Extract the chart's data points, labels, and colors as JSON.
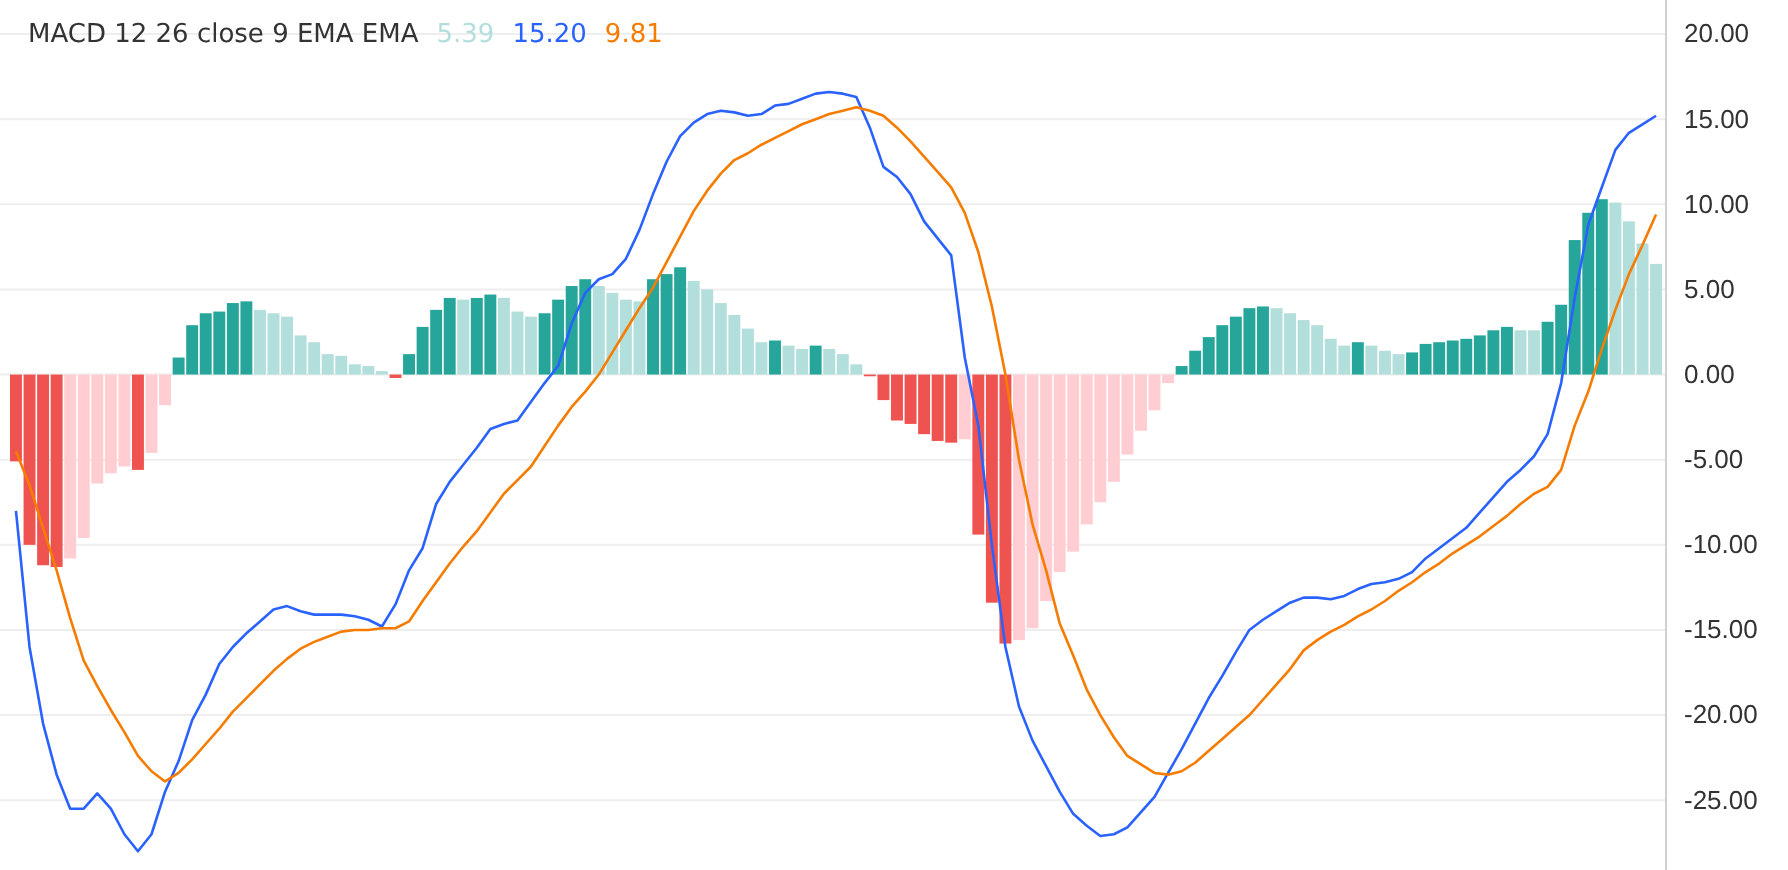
{
  "chart_data": {
    "type": "bar",
    "title": "MACD 12 26 close 9 EMA EMA",
    "categories": [
      null,
      null,
      null,
      null,
      null,
      null,
      null,
      null,
      null,
      null,
      null,
      null,
      null,
      null,
      null,
      null,
      null,
      null,
      null,
      null,
      null,
      null,
      null,
      null,
      null,
      null,
      null,
      null,
      null,
      null,
      null,
      null,
      null,
      null,
      null,
      null,
      null,
      null,
      null,
      null,
      null,
      null,
      null,
      null,
      null,
      null,
      null,
      null,
      null,
      null,
      null,
      null,
      null,
      null,
      null,
      null,
      null,
      null,
      null,
      null,
      null,
      null,
      null,
      null,
      null,
      null,
      null,
      null,
      null,
      null,
      null,
      null,
      null,
      null,
      null,
      null,
      null,
      null,
      null,
      null,
      null,
      null,
      null,
      null,
      null,
      null,
      null,
      null,
      null,
      null,
      null,
      null,
      null,
      null,
      null,
      null,
      null,
      null,
      null,
      null,
      null,
      null,
      null,
      null,
      null,
      null,
      null,
      null,
      null,
      null,
      null,
      null,
      null,
      null,
      null,
      null,
      null,
      null,
      null,
      null,
      null,
      null
    ],
    "series": [
      {
        "name": "5.39",
        "color": "#b2dfdb",
        "values": [
          -5.1,
          -10.0,
          -11.2,
          -11.3,
          -10.8,
          -9.6,
          -6.4,
          -5.8,
          -5.4,
          -5.6,
          -4.6,
          -1.8,
          1.0,
          2.9,
          3.6,
          3.7,
          4.2,
          4.3,
          3.8,
          3.6,
          3.4,
          2.3,
          1.9,
          1.2,
          1.1,
          0.6,
          0.5,
          0.2,
          -0.2,
          1.2,
          2.8,
          3.8,
          4.5,
          4.4,
          4.5,
          4.7,
          4.5,
          3.7,
          3.4,
          3.6,
          4.4,
          5.2,
          5.6,
          5.2,
          4.8,
          4.4,
          4.3,
          5.6,
          5.9,
          6.3,
          5.5,
          5.0,
          4.2,
          3.5,
          2.7,
          1.9,
          2.0,
          1.7,
          1.5,
          1.7,
          1.5,
          1.2,
          0.6,
          -0.1,
          -1.5,
          -2.7,
          -2.9,
          -3.5,
          -3.9,
          -4.0,
          -3.8,
          -9.4,
          -13.4,
          -15.8,
          -15.6,
          -14.9,
          -13.3,
          -11.6,
          -10.4,
          -8.8,
          -7.5,
          -6.3,
          -4.7,
          -3.3,
          -2.1,
          -0.5,
          0.5,
          1.4,
          2.2,
          2.9,
          3.4,
          3.9,
          4.0,
          3.9,
          3.6,
          3.2,
          2.9,
          2.1,
          1.7,
          1.9,
          1.7,
          1.4,
          1.2,
          1.3,
          1.8,
          1.9,
          2.0,
          2.1,
          2.3,
          2.6,
          2.8,
          2.6,
          2.6,
          3.1,
          4.1,
          7.9,
          9.5,
          10.3,
          10.1,
          9.0,
          7.7,
          6.5
        ],
        "colors": [
          "#ef5350",
          "#ef5350",
          "#ef5350",
          "#ef5350",
          "#ffcdd2",
          "#ffcdd2",
          "#ffcdd2",
          "#ffcdd2",
          "#ffcdd2",
          "#ef5350",
          "#ffcdd2",
          "#ffcdd2",
          "#26a69a",
          "#26a69a",
          "#26a69a",
          "#26a69a",
          "#26a69a",
          "#26a69a",
          "#b2dfdb",
          "#b2dfdb",
          "#b2dfdb",
          "#b2dfdb",
          "#b2dfdb",
          "#b2dfdb",
          "#b2dfdb",
          "#b2dfdb",
          "#b2dfdb",
          "#b2dfdb",
          "#ef5350",
          "#26a69a",
          "#26a69a",
          "#26a69a",
          "#26a69a",
          "#b2dfdb",
          "#26a69a",
          "#26a69a",
          "#b2dfdb",
          "#b2dfdb",
          "#b2dfdb",
          "#26a69a",
          "#26a69a",
          "#26a69a",
          "#26a69a",
          "#b2dfdb",
          "#b2dfdb",
          "#b2dfdb",
          "#b2dfdb",
          "#26a69a",
          "#26a69a",
          "#26a69a",
          "#b2dfdb",
          "#b2dfdb",
          "#b2dfdb",
          "#b2dfdb",
          "#b2dfdb",
          "#b2dfdb",
          "#26a69a",
          "#b2dfdb",
          "#b2dfdb",
          "#26a69a",
          "#b2dfdb",
          "#b2dfdb",
          "#b2dfdb",
          "#ef5350",
          "#ef5350",
          "#ef5350",
          "#ef5350",
          "#ef5350",
          "#ef5350",
          "#ef5350",
          "#ffcdd2",
          "#ef5350",
          "#ef5350",
          "#ef5350",
          "#ffcdd2",
          "#ffcdd2",
          "#ffcdd2",
          "#ffcdd2",
          "#ffcdd2",
          "#ffcdd2",
          "#ffcdd2",
          "#ffcdd2",
          "#ffcdd2",
          "#ffcdd2",
          "#ffcdd2",
          "#ffcdd2",
          "#26a69a",
          "#26a69a",
          "#26a69a",
          "#26a69a",
          "#26a69a",
          "#26a69a",
          "#26a69a",
          "#b2dfdb",
          "#b2dfdb",
          "#b2dfdb",
          "#b2dfdb",
          "#b2dfdb",
          "#b2dfdb",
          "#26a69a",
          "#b2dfdb",
          "#b2dfdb",
          "#b2dfdb",
          "#26a69a",
          "#26a69a",
          "#26a69a",
          "#26a69a",
          "#26a69a",
          "#26a69a",
          "#26a69a",
          "#26a69a",
          "#b2dfdb",
          "#b2dfdb",
          "#26a69a",
          "#26a69a",
          "#26a69a",
          "#26a69a",
          "#26a69a",
          "#b2dfdb",
          "#b2dfdb",
          "#b2dfdb",
          "#b2dfdb"
        ]
      },
      {
        "name": "15.20",
        "type": "line",
        "color": "#2962ff",
        "values": [
          -8.0,
          -16.0,
          -20.5,
          -23.5,
          -25.5,
          -25.5,
          -24.6,
          -25.5,
          -27.0,
          -28.0,
          -27.0,
          -24.5,
          -22.7,
          -20.3,
          -18.8,
          -17.0,
          -16.0,
          -15.2,
          -14.5,
          -13.8,
          -13.6,
          -13.9,
          -14.1,
          -14.1,
          -14.1,
          -14.2,
          -14.4,
          -14.8,
          -13.5,
          -11.5,
          -10.2,
          -7.6,
          -6.3,
          -5.3,
          -4.3,
          -3.2,
          -2.9,
          -2.7,
          -1.6,
          -0.5,
          0.5,
          3.0,
          4.8,
          5.6,
          5.9,
          6.8,
          8.5,
          10.6,
          12.5,
          14.0,
          14.8,
          15.3,
          15.5,
          15.4,
          15.2,
          15.3,
          15.8,
          15.9,
          16.2,
          16.5,
          16.6,
          16.5,
          16.3,
          14.5,
          12.2,
          11.6,
          10.6,
          9.0,
          8.0,
          7.0,
          1.0,
          -3.0,
          -10.0,
          -16.0,
          -19.5,
          -21.5,
          -23.0,
          -24.5,
          -25.8,
          -26.5,
          -27.1,
          -27.0,
          -26.6,
          -25.7,
          -24.8,
          -23.4,
          -22.0,
          -20.5,
          -19.0,
          -17.7,
          -16.3,
          -15.0,
          -14.4,
          -13.9,
          -13.4,
          -13.1,
          -13.1,
          -13.2,
          -13.0,
          -12.6,
          -12.3,
          -12.2,
          -12.0,
          -11.6,
          -10.8,
          -10.2,
          -9.6,
          -9.0,
          -8.1,
          -7.2,
          -6.3,
          -5.6,
          -4.8,
          -3.5,
          -0.5,
          4.5,
          8.8,
          11.0,
          13.2,
          14.2,
          14.7,
          15.2
        ]
      },
      {
        "name": "9.81",
        "type": "line",
        "color": "#f57c00",
        "values": [
          -4.5,
          -6.5,
          -9.0,
          -11.5,
          -14.3,
          -16.8,
          -18.3,
          -19.7,
          -21.0,
          -22.4,
          -23.3,
          -23.9,
          -23.4,
          -22.6,
          -21.7,
          -20.8,
          -19.8,
          -19.0,
          -18.2,
          -17.4,
          -16.7,
          -16.1,
          -15.7,
          -15.4,
          -15.1,
          -15.0,
          -15.0,
          -14.9,
          -14.9,
          -14.5,
          -13.3,
          -12.2,
          -11.1,
          -10.1,
          -9.2,
          -8.1,
          -7.0,
          -6.2,
          -5.4,
          -4.2,
          -3.0,
          -1.9,
          -1.0,
          0.0,
          1.3,
          2.6,
          3.9,
          5.1,
          6.6,
          8.1,
          9.6,
          10.8,
          11.8,
          12.6,
          13.0,
          13.5,
          13.9,
          14.3,
          14.7,
          15.0,
          15.3,
          15.5,
          15.7,
          15.5,
          15.2,
          14.5,
          13.7,
          12.8,
          11.9,
          11.0,
          9.5,
          7.2,
          4.0,
          0.0,
          -5.0,
          -8.8,
          -11.5,
          -14.6,
          -16.5,
          -18.5,
          -20.0,
          -21.3,
          -22.4,
          -22.9,
          -23.4,
          -23.5,
          -23.3,
          -22.8,
          -22.1,
          -21.4,
          -20.7,
          -20.0,
          -19.1,
          -18.2,
          -17.3,
          -16.2,
          -15.6,
          -15.1,
          -14.7,
          -14.2,
          -13.8,
          -13.3,
          -12.7,
          -12.2,
          -11.6,
          -11.1,
          -10.5,
          -10.0,
          -9.5,
          -8.9,
          -8.3,
          -7.6,
          -7.0,
          -6.6,
          -5.6,
          -3.0,
          -1.0,
          1.5,
          3.8,
          5.9,
          7.6,
          9.4
        ]
      }
    ],
    "ylim": [
      -29.1,
      22.0
    ],
    "yticks": [
      {
        "value": 20,
        "label": "20.00"
      },
      {
        "value": 15,
        "label": "15.00"
      },
      {
        "value": 10,
        "label": "10.00"
      },
      {
        "value": 5,
        "label": "5.00"
      },
      {
        "value": 0,
        "label": "0.00"
      },
      {
        "value": -5,
        "label": "-5.00"
      },
      {
        "value": -10,
        "label": "-10.00"
      },
      {
        "value": -15,
        "label": "-15.00"
      },
      {
        "value": -20,
        "label": "-20.00"
      },
      {
        "value": -25,
        "label": "-25.00"
      }
    ],
    "grid": "y",
    "legend": "top left",
    "tick_labels": "y"
  }
}
